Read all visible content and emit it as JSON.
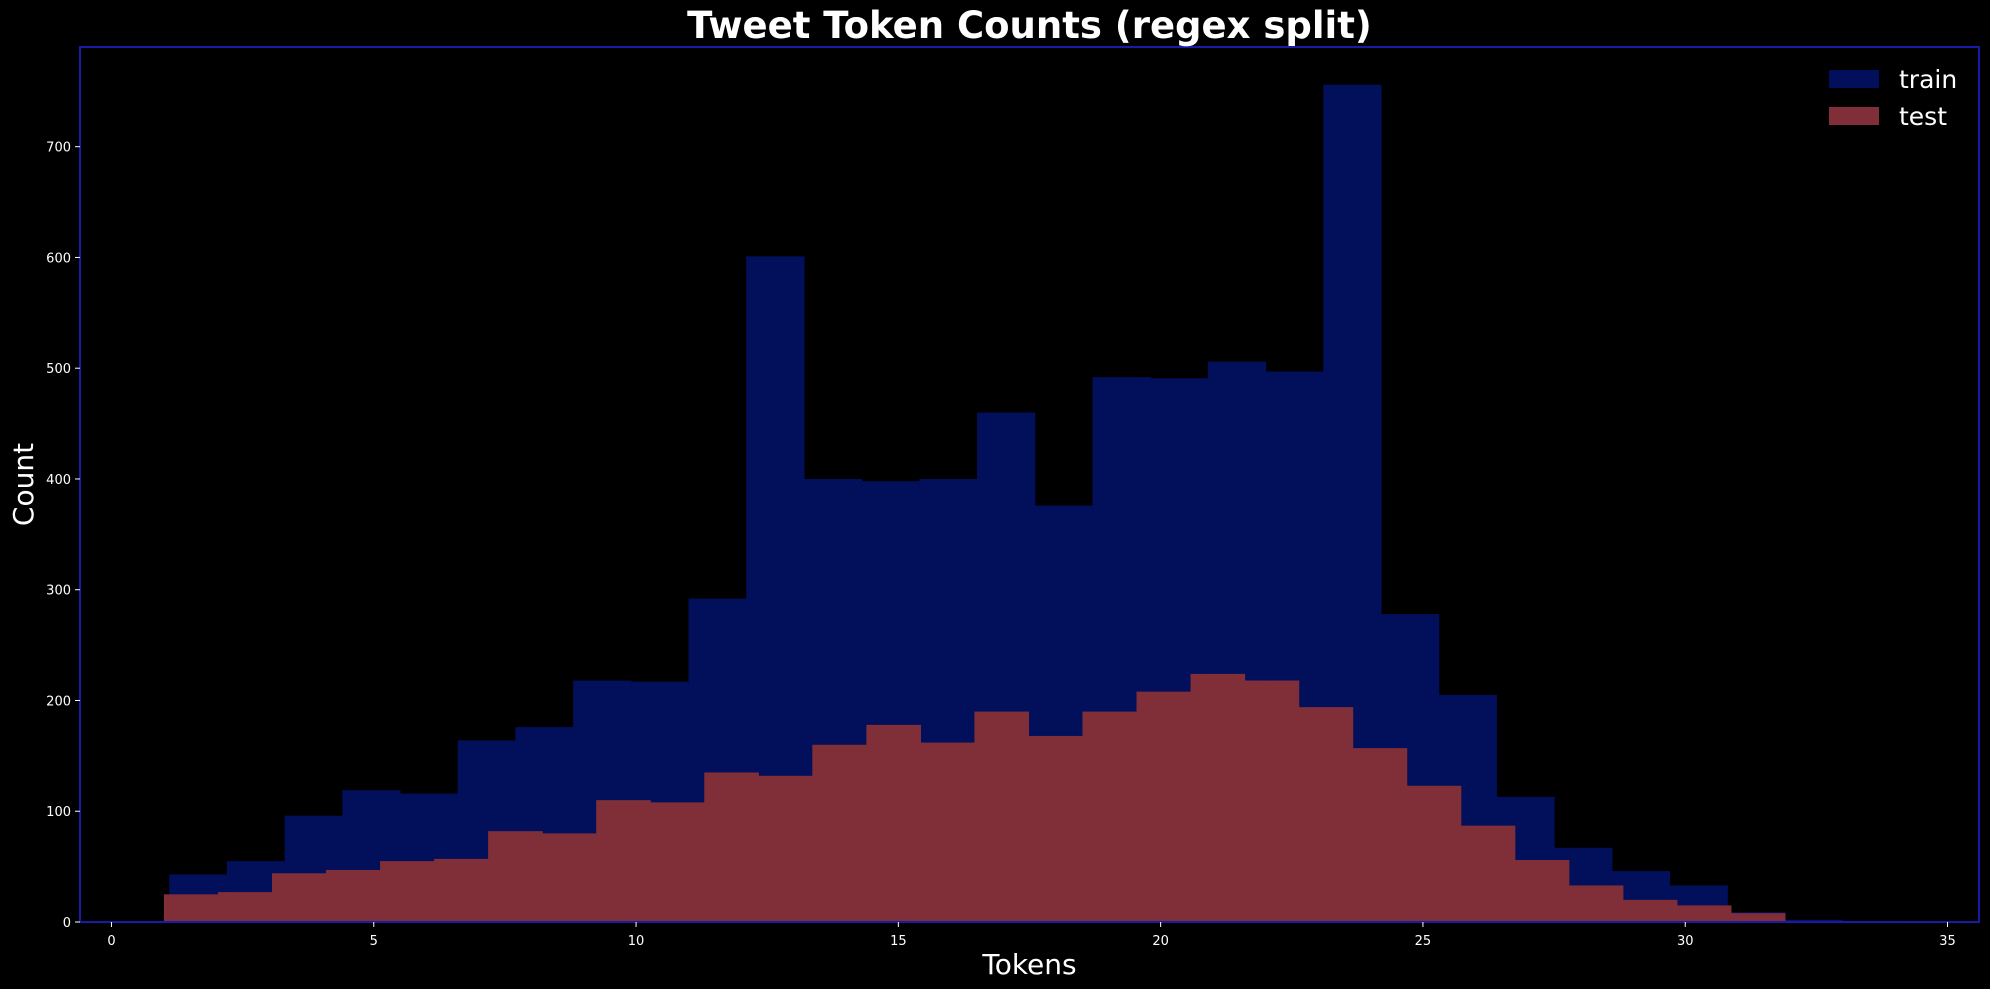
{
  "chart_data": {
    "type": "bar",
    "subtype": "histogram",
    "title": "Tweet Token Counts (regex split)",
    "xlabel": "Tokens",
    "ylabel": "Count",
    "xlim": [
      -0.6,
      35.6
    ],
    "ylim": [
      0,
      790
    ],
    "xticks": [
      0,
      5,
      10,
      15,
      20,
      25,
      30,
      35
    ],
    "yticks": [
      0,
      100,
      200,
      300,
      400,
      500,
      600,
      700
    ],
    "grid": false,
    "legend_position": "top-right",
    "series": [
      {
        "name": "train",
        "color": "#020f5a",
        "bin_edges": [
          0,
          1.1,
          2.2,
          3.3,
          4.4,
          5.5,
          6.6,
          7.7,
          8.8,
          9.9,
          11,
          12.1,
          13.2,
          14.3,
          15.4,
          16.5,
          17.6,
          18.7,
          19.8,
          20.9,
          22,
          23.1,
          24.2,
          25.3,
          26.4,
          27.5,
          28.6,
          29.7,
          30.8,
          31.9,
          33,
          34.1,
          35.2
        ],
        "values": [
          0,
          43,
          55,
          96,
          119,
          116,
          164,
          176,
          218,
          217,
          292,
          601,
          400,
          398,
          400,
          460,
          376,
          492,
          491,
          506,
          497,
          756,
          278,
          205,
          113,
          67,
          46,
          33,
          9,
          2,
          1,
          0
        ]
      },
      {
        "name": "test",
        "color": "#802f38",
        "bin_edges": [
          0,
          1,
          2.03,
          3.06,
          4.09,
          5.12,
          6.15,
          7.18,
          8.21,
          9.24,
          10.27,
          11.3,
          12.33,
          13.36,
          14.39,
          15.42,
          16.45,
          17.48,
          18.51,
          19.54,
          20.57,
          21.6,
          22.63,
          23.66,
          24.69,
          25.72,
          26.75,
          27.78,
          28.81,
          29.84,
          30.87,
          31.9,
          32.93,
          33.96
        ],
        "values": [
          0,
          25,
          27,
          44,
          47,
          55,
          57,
          82,
          80,
          110,
          108,
          135,
          132,
          160,
          178,
          162,
          190,
          168,
          190,
          208,
          224,
          218,
          194,
          157,
          123,
          87,
          56,
          33,
          20,
          15,
          8,
          1,
          0
        ]
      }
    ]
  }
}
